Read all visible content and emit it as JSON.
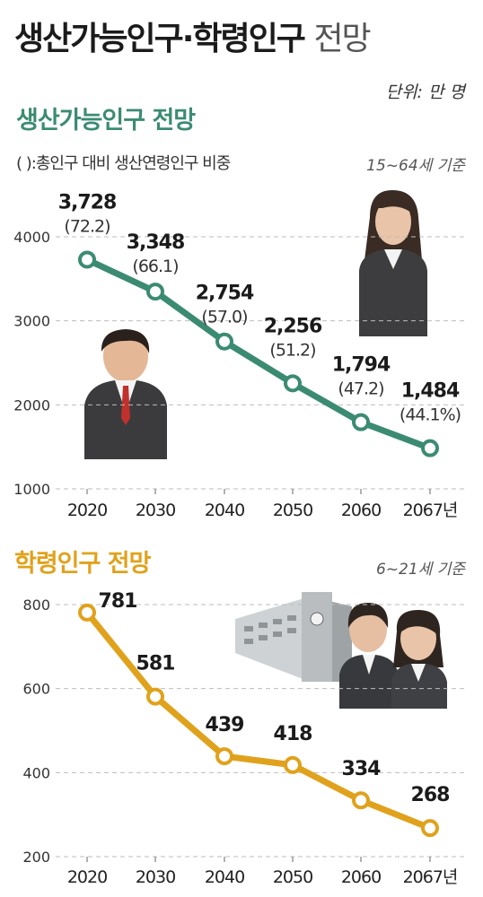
{
  "header": {
    "title_main": "생산가능인구·학령인구",
    "title_light": "전망",
    "unit": "단위: 만 명"
  },
  "section1": {
    "title": "생산가능인구 전망",
    "note": "( ):총인구 대비 생산연령인구 비중",
    "basis": "15~64세 기준"
  },
  "section2": {
    "title": "학령인구 전망",
    "basis": "6~21세 기준"
  },
  "colors": {
    "working_age": "#3b8b73",
    "school_age": "#e0a21c"
  },
  "chart_data": [
    {
      "type": "line",
      "title": "생산가능인구 전망",
      "categories": [
        "2020",
        "2030",
        "2040",
        "2050",
        "2060",
        "2067년"
      ],
      "values": [
        3728,
        3348,
        2754,
        2256,
        1794,
        1484
      ],
      "value_labels": [
        "3,728",
        "3,348",
        "2,754",
        "2,256",
        "1,794",
        "1,484"
      ],
      "sub_labels": [
        "(72.2)",
        "(66.1)",
        "(57.0)",
        "(51.2)",
        "(47.2)",
        "(44.1%)"
      ],
      "ylim": [
        1000,
        4000
      ],
      "yticks": [
        1000,
        2000,
        3000,
        4000
      ],
      "grid": true
    },
    {
      "type": "line",
      "title": "학령인구 전망",
      "categories": [
        "2020",
        "2030",
        "2040",
        "2050",
        "2060",
        "2067년"
      ],
      "values": [
        781,
        581,
        439,
        418,
        334,
        268
      ],
      "value_labels": [
        "781",
        "581",
        "439",
        "418",
        "334",
        "268"
      ],
      "ylim": [
        200,
        800
      ],
      "yticks": [
        200,
        400,
        600,
        800
      ],
      "grid": true
    }
  ]
}
